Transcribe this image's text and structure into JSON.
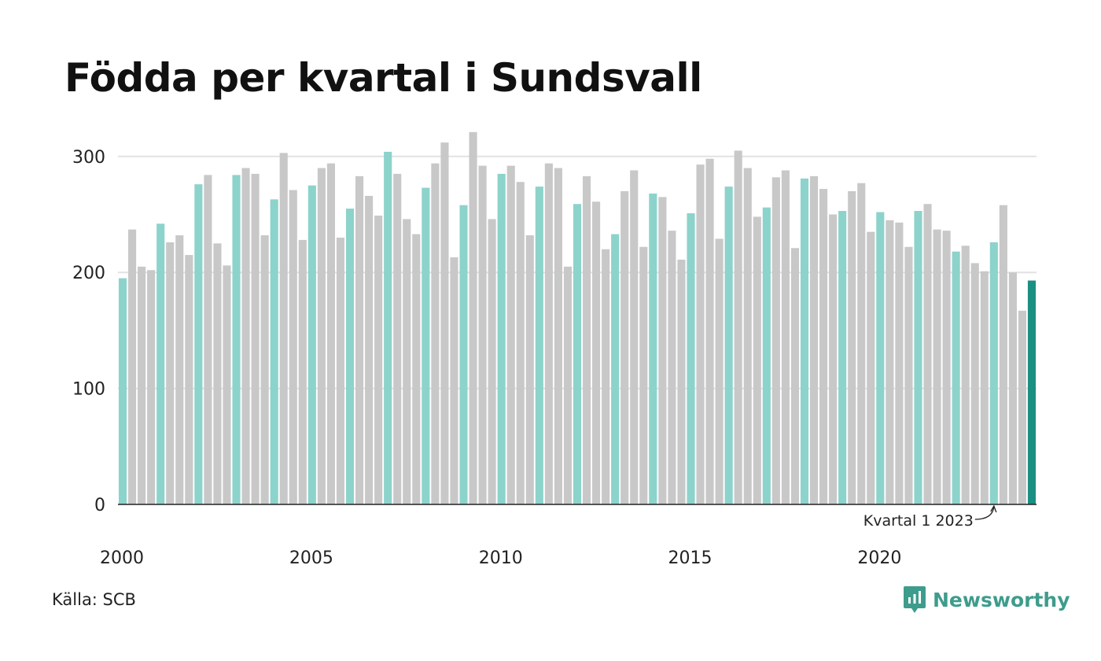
{
  "chart_data": {
    "type": "bar",
    "title": "Födda per kvartal i Sundsvall",
    "xlabel": "",
    "ylabel": "",
    "ylim": [
      0,
      330
    ],
    "yticks": [
      0,
      100,
      200,
      300
    ],
    "xtick_labels": [
      "2000",
      "2005",
      "2010",
      "2015",
      "2020"
    ],
    "grid": true,
    "first_period": "2000 Q1",
    "categories": [
      "2000 Q1",
      "2000 Q2",
      "2000 Q3",
      "2000 Q4",
      "2001 Q1",
      "2001 Q2",
      "2001 Q3",
      "2001 Q4",
      "2002 Q1",
      "2002 Q2",
      "2002 Q3",
      "2002 Q4",
      "2003 Q1",
      "2003 Q2",
      "2003 Q3",
      "2003 Q4",
      "2004 Q1",
      "2004 Q2",
      "2004 Q3",
      "2004 Q4",
      "2005 Q1",
      "2005 Q2",
      "2005 Q3",
      "2005 Q4",
      "2006 Q1",
      "2006 Q2",
      "2006 Q3",
      "2006 Q4",
      "2007 Q1",
      "2007 Q2",
      "2007 Q3",
      "2007 Q4",
      "2008 Q1",
      "2008 Q2",
      "2008 Q3",
      "2008 Q4",
      "2009 Q1",
      "2009 Q2",
      "2009 Q3",
      "2009 Q4",
      "2010 Q1",
      "2010 Q2",
      "2010 Q3",
      "2010 Q4",
      "2011 Q1",
      "2011 Q2",
      "2011 Q3",
      "2011 Q4",
      "2012 Q1",
      "2012 Q2",
      "2012 Q3",
      "2012 Q4",
      "2013 Q1",
      "2013 Q2",
      "2013 Q3",
      "2013 Q4",
      "2014 Q1",
      "2014 Q2",
      "2014 Q3",
      "2014 Q4",
      "2015 Q1",
      "2015 Q2",
      "2015 Q3",
      "2015 Q4",
      "2016 Q1",
      "2016 Q2",
      "2016 Q3",
      "2016 Q4",
      "2017 Q1",
      "2017 Q2",
      "2017 Q3",
      "2017 Q4",
      "2018 Q1",
      "2018 Q2",
      "2018 Q3",
      "2018 Q4",
      "2019 Q1",
      "2019 Q2",
      "2019 Q3",
      "2019 Q4",
      "2020 Q1",
      "2020 Q2",
      "2020 Q3",
      "2020 Q4",
      "2021 Q1",
      "2021 Q2",
      "2021 Q3",
      "2021 Q4",
      "2022 Q1",
      "2022 Q2",
      "2022 Q3",
      "2022 Q4",
      "2023 Q1",
      "2023 Q2",
      "2023 Q3",
      "2023 Q4",
      "2024 Q1"
    ],
    "values": [
      195,
      237,
      205,
      202,
      242,
      226,
      232,
      215,
      276,
      284,
      225,
      206,
      284,
      290,
      285,
      232,
      263,
      303,
      271,
      228,
      275,
      290,
      294,
      230,
      255,
      283,
      266,
      249,
      304,
      285,
      246,
      233,
      273,
      294,
      312,
      213,
      258,
      321,
      292,
      246,
      285,
      292,
      278,
      232,
      274,
      294,
      290,
      205,
      259,
      283,
      261,
      220,
      233,
      270,
      288,
      222,
      268,
      265,
      236,
      211,
      251,
      293,
      298,
      229,
      274,
      305,
      290,
      248,
      256,
      282,
      288,
      221,
      281,
      283,
      272,
      250,
      253,
      270,
      277,
      235,
      252,
      245,
      243,
      222,
      253,
      259,
      237,
      236,
      218,
      223,
      208,
      201,
      226,
      258,
      200,
      167,
      193
    ],
    "annotation": {
      "text": "Kvartal 1 2023",
      "target": "2023 Q1"
    },
    "colors": {
      "q1": "#8cd3cb",
      "other": "#c8c8c8",
      "latest": "#1a8f82",
      "grid": "#e2e2e2",
      "axis": "#222222"
    }
  },
  "source_label": "Källa: SCB",
  "brand": {
    "name": "Newsworthy",
    "icon": "newsworthy-logo-icon",
    "color": "#3e9c8c"
  }
}
